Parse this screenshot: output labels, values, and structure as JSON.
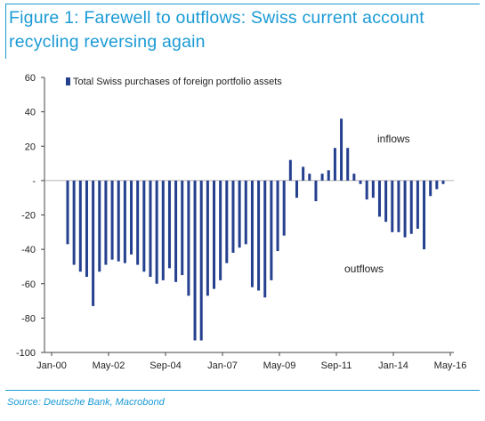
{
  "title": "Figure 1: Farewell to outflows: Swiss current account recycling reversing again",
  "source": "Source: Deutsche Bank, Macrobond",
  "colors": {
    "accent": "#1a9ad6",
    "bar": "#24408e"
  },
  "chart_data": {
    "type": "bar",
    "legend": "Total Swiss purchases of foreign portfolio assets",
    "legend_position": "top-left",
    "annotations": [
      "inflows",
      "outflows"
    ],
    "y_ticks": [
      "60",
      "40",
      "20",
      "-",
      "-20",
      "-40",
      "-60",
      "-80",
      "-100"
    ],
    "ylim": [
      -100,
      60
    ],
    "x_ticks": [
      "Jan-00",
      "May-02",
      "Sep-04",
      "Jan-07",
      "May-09",
      "Sep-11",
      "Jan-14",
      "May-16"
    ],
    "grid": false,
    "series": [
      {
        "values": [
          -37,
          -49,
          -53,
          -56,
          -73,
          -53,
          -49,
          -46,
          -47,
          -48,
          -43,
          -49,
          -53,
          -56,
          -60,
          -58,
          -51,
          -59,
          -55,
          -67,
          -93,
          -93,
          -67,
          -63,
          -58,
          -48,
          -42,
          -39,
          -37,
          -62,
          -64,
          -68,
          -58,
          -41,
          -32,
          12,
          -10,
          8,
          4,
          -12,
          4,
          6,
          19,
          36,
          19,
          4,
          -2,
          -11,
          -10,
          -21,
          -24,
          -30,
          -30,
          -33,
          -31,
          -28,
          -40,
          -9,
          -5,
          -2
        ]
      }
    ]
  }
}
